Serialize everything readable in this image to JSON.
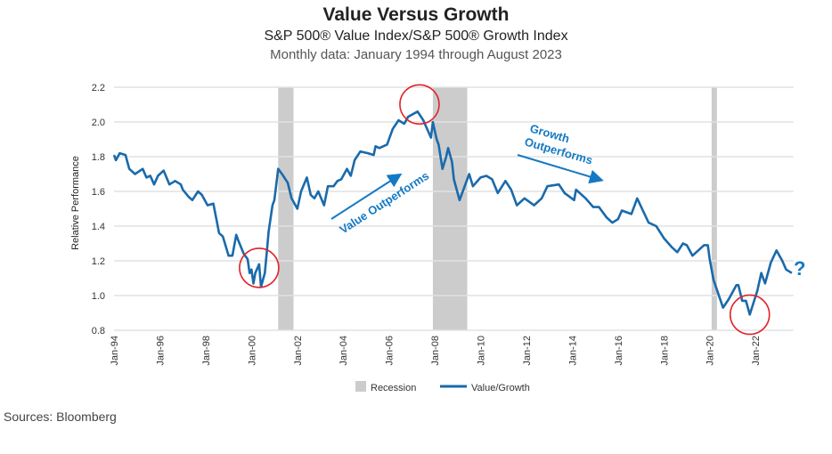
{
  "chart_data": {
    "type": "line",
    "title": "Value Versus Growth",
    "subtitle": "S&P 500® Value Index/S&P 500® Growth Index",
    "subtitle2": "Monthly data: January 1994 through August 2023",
    "ylabel": "Relative Performance",
    "xlabel": "",
    "ylim": [
      0.8,
      2.2
    ],
    "yticks": [
      "0.8",
      "1.0",
      "1.2",
      "1.4",
      "1.6",
      "1.8",
      "2.0",
      "2.2"
    ],
    "xlim": [
      "1994-01",
      "2023-08"
    ],
    "xticks": [
      "Jan-94",
      "Jan-96",
      "Jan-98",
      "Jan-00",
      "Jan-02",
      "Jan-04",
      "Jan-06",
      "Jan-08",
      "Jan-10",
      "Jan-12",
      "Jan-14",
      "Jan-16",
      "Jan-18",
      "Jan-20",
      "Jan-22"
    ],
    "grid": true,
    "legend_placement": "bottom",
    "legend": {
      "recession": "Recession",
      "series": "Value/Growth"
    },
    "colors": {
      "series": "#1a6aab",
      "recession": "#cccccc",
      "annotation": "#1479c4",
      "circle": "#e0262b"
    },
    "recessions": [
      [
        "2001-03",
        "2001-11"
      ],
      [
        "2007-12",
        "2009-06"
      ],
      [
        "2020-02",
        "2020-04"
      ]
    ],
    "series": [
      {
        "name": "Value/Growth",
        "points": [
          [
            "1994-01",
            1.81
          ],
          [
            "1994-02",
            1.78
          ],
          [
            "1994-04",
            1.82
          ],
          [
            "1994-07",
            1.81
          ],
          [
            "1994-09",
            1.73
          ],
          [
            "1994-12",
            1.7
          ],
          [
            "1995-04",
            1.73
          ],
          [
            "1995-06",
            1.68
          ],
          [
            "1995-08",
            1.69
          ],
          [
            "1995-10",
            1.64
          ],
          [
            "1995-12",
            1.69
          ],
          [
            "1996-03",
            1.72
          ],
          [
            "1996-06",
            1.64
          ],
          [
            "1996-09",
            1.66
          ],
          [
            "1996-12",
            1.64
          ],
          [
            "1997-01",
            1.61
          ],
          [
            "1997-04",
            1.57
          ],
          [
            "1997-06",
            1.55
          ],
          [
            "1997-09",
            1.6
          ],
          [
            "1997-11",
            1.58
          ],
          [
            "1998-02",
            1.52
          ],
          [
            "1998-05",
            1.53
          ],
          [
            "1998-07",
            1.42
          ],
          [
            "1998-08",
            1.36
          ],
          [
            "1998-10",
            1.34
          ],
          [
            "1999-01",
            1.23
          ],
          [
            "1999-03",
            1.23
          ],
          [
            "1999-05",
            1.35
          ],
          [
            "1999-06",
            1.32
          ],
          [
            "1999-09",
            1.24
          ],
          [
            "1999-11",
            1.21
          ],
          [
            "1999-12",
            1.13
          ],
          [
            "2000-01",
            1.15
          ],
          [
            "2000-02",
            1.07
          ],
          [
            "2000-03",
            1.13
          ],
          [
            "2000-05",
            1.18
          ],
          [
            "2000-06",
            1.05
          ],
          [
            "2000-08",
            1.13
          ],
          [
            "2000-09",
            1.25
          ],
          [
            "2000-10",
            1.37
          ],
          [
            "2000-12",
            1.52
          ],
          [
            "2001-01",
            1.55
          ],
          [
            "2001-03",
            1.73
          ],
          [
            "2001-05",
            1.7
          ],
          [
            "2001-08",
            1.65
          ],
          [
            "2001-10",
            1.56
          ],
          [
            "2002-01",
            1.5
          ],
          [
            "2002-03",
            1.6
          ],
          [
            "2002-06",
            1.68
          ],
          [
            "2002-08",
            1.58
          ],
          [
            "2002-10",
            1.56
          ],
          [
            "2002-12",
            1.6
          ],
          [
            "2003-03",
            1.52
          ],
          [
            "2003-05",
            1.63
          ],
          [
            "2003-08",
            1.63
          ],
          [
            "2003-10",
            1.66
          ],
          [
            "2003-12",
            1.67
          ],
          [
            "2004-03",
            1.73
          ],
          [
            "2004-05",
            1.69
          ],
          [
            "2004-07",
            1.78
          ],
          [
            "2004-10",
            1.83
          ],
          [
            "2005-02",
            1.82
          ],
          [
            "2005-05",
            1.81
          ],
          [
            "2005-06",
            1.86
          ],
          [
            "2005-08",
            1.85
          ],
          [
            "2005-12",
            1.87
          ],
          [
            "2006-03",
            1.96
          ],
          [
            "2006-06",
            2.01
          ],
          [
            "2006-09",
            1.99
          ],
          [
            "2006-11",
            2.03
          ],
          [
            "2007-04",
            2.06
          ],
          [
            "2007-07",
            2.01
          ],
          [
            "2007-11",
            1.91
          ],
          [
            "2007-12",
            2.0
          ],
          [
            "2008-02",
            1.9
          ],
          [
            "2008-03",
            1.87
          ],
          [
            "2008-05",
            1.73
          ],
          [
            "2008-07",
            1.8
          ],
          [
            "2008-08",
            1.85
          ],
          [
            "2008-10",
            1.77
          ],
          [
            "2008-11",
            1.67
          ],
          [
            "2009-02",
            1.55
          ],
          [
            "2009-05",
            1.64
          ],
          [
            "2009-07",
            1.7
          ],
          [
            "2009-09",
            1.63
          ],
          [
            "2010-01",
            1.68
          ],
          [
            "2010-04",
            1.69
          ],
          [
            "2010-07",
            1.67
          ],
          [
            "2010-10",
            1.59
          ],
          [
            "2011-02",
            1.66
          ],
          [
            "2011-05",
            1.61
          ],
          [
            "2011-08",
            1.52
          ],
          [
            "2011-12",
            1.56
          ],
          [
            "2012-05",
            1.52
          ],
          [
            "2012-09",
            1.56
          ],
          [
            "2012-12",
            1.63
          ],
          [
            "2013-06",
            1.64
          ],
          [
            "2013-09",
            1.59
          ],
          [
            "2014-02",
            1.55
          ],
          [
            "2014-03",
            1.61
          ],
          [
            "2014-08",
            1.56
          ],
          [
            "2014-12",
            1.51
          ],
          [
            "2015-03",
            1.51
          ],
          [
            "2015-07",
            1.45
          ],
          [
            "2015-10",
            1.42
          ],
          [
            "2016-01",
            1.44
          ],
          [
            "2016-03",
            1.49
          ],
          [
            "2016-08",
            1.47
          ],
          [
            "2016-11",
            1.56
          ],
          [
            "2017-02",
            1.49
          ],
          [
            "2017-05",
            1.42
          ],
          [
            "2017-09",
            1.4
          ],
          [
            "2018-01",
            1.33
          ],
          [
            "2018-05",
            1.28
          ],
          [
            "2018-08",
            1.25
          ],
          [
            "2018-11",
            1.3
          ],
          [
            "2019-01",
            1.29
          ],
          [
            "2019-04",
            1.23
          ],
          [
            "2019-07",
            1.26
          ],
          [
            "2019-10",
            1.29
          ],
          [
            "2019-12",
            1.29
          ],
          [
            "2020-01",
            1.21
          ],
          [
            "2020-03",
            1.09
          ],
          [
            "2020-08",
            0.93
          ],
          [
            "2020-11",
            0.98
          ],
          [
            "2021-03",
            1.06
          ],
          [
            "2021-04",
            1.06
          ],
          [
            "2021-06",
            0.97
          ],
          [
            "2021-08",
            0.97
          ],
          [
            "2021-10",
            0.89
          ],
          [
            "2022-02",
            1.03
          ],
          [
            "2022-04",
            1.13
          ],
          [
            "2022-06",
            1.07
          ],
          [
            "2022-09",
            1.19
          ],
          [
            "2022-12",
            1.26
          ],
          [
            "2023-03",
            1.2
          ],
          [
            "2023-05",
            1.15
          ],
          [
            "2023-08",
            1.13
          ]
        ]
      }
    ],
    "annotations": {
      "value_outperforms": "Value Outperforms",
      "growth_line1": "Growth",
      "growth_line2": "Outperforms",
      "question": "?",
      "circled_dates": [
        "2000-05",
        "2007-05",
        "2021-10"
      ]
    }
  },
  "sources": "Sources: Bloomberg"
}
